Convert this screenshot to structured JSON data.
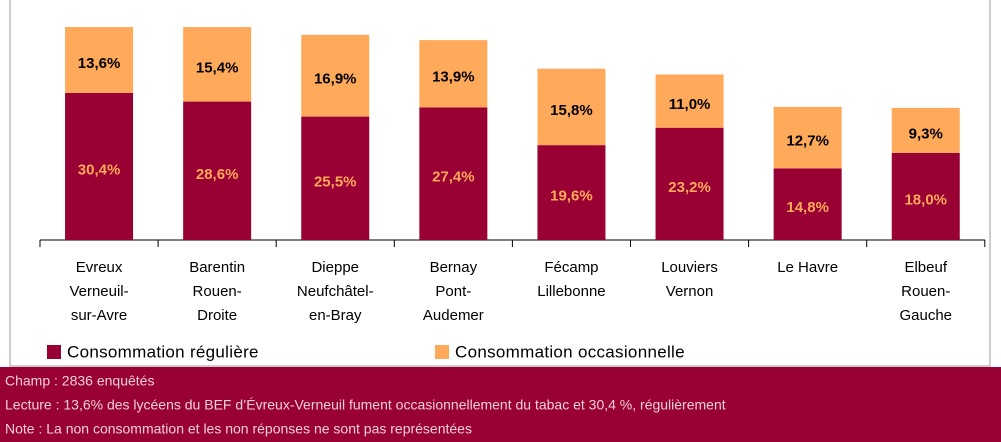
{
  "chart_data": {
    "type": "stacked_bar",
    "categories": [
      "Evreux\nVerneuil-\nsur-Avre",
      "Barentin\nRouen-\nDroite",
      "Dieppe\nNeufchâtel-\nen-Bray",
      "Bernay\nPont-\nAudemer",
      "Fécamp\nLillebonne",
      "Louviers\nVernon",
      "Le Havre",
      "Elbeuf\nRouen-\nGauche"
    ],
    "series": [
      {
        "name": "Consommation régulière",
        "color": "#990033",
        "values": [
          30.4,
          28.6,
          25.5,
          27.4,
          19.6,
          23.2,
          14.8,
          18.0
        ],
        "value_labels": [
          "30,4%",
          "28,6%",
          "25,5%",
          "27,4%",
          "19,6%",
          "23,2%",
          "14,8%",
          "18,0%"
        ]
      },
      {
        "name": "Consommation occasionnelle",
        "color": "#FFA95A",
        "values": [
          13.6,
          15.4,
          16.9,
          13.9,
          15.8,
          11.0,
          12.7,
          9.3
        ],
        "value_labels": [
          "13,6%",
          "15,4%",
          "16,9%",
          "13,9%",
          "15,8%",
          "11,0%",
          "12,7%",
          "9,3%"
        ]
      }
    ],
    "notes": [
      "Champ : 2836 enquêtés",
      "Lecture : 13,6% des lycéens du BEF d’Évreux-Verneuil fument occasionnellement du tabac et 30,4 %, régulièrement",
      "Note : La non consommation et les non réponses ne sont pas représentées"
    ]
  }
}
